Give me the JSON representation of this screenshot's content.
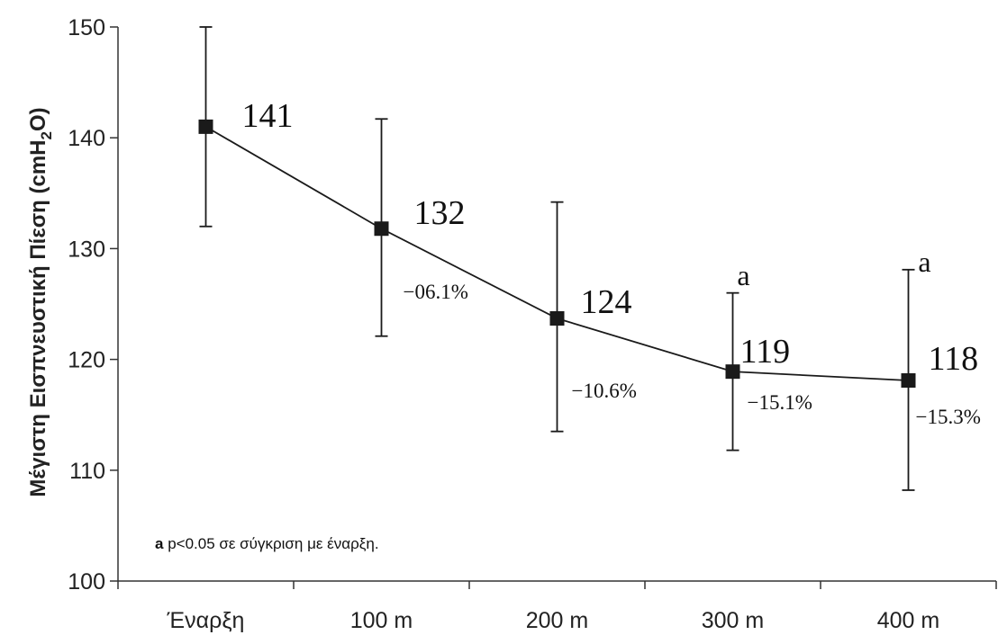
{
  "chart_data": {
    "type": "line",
    "title": "",
    "xlabel": "",
    "ylabel": "Μέγιστη Εισπνευστική Πίεση (cmH2O)",
    "ylabel_main": "Μέγιστη Εισπνευστική Πίεση (cmH",
    "ylabel_sub": "2",
    "ylabel_end": "O)",
    "ylim": [
      100,
      150
    ],
    "yticks": [
      "100",
      "110",
      "120",
      "130",
      "140",
      "150"
    ],
    "categories": [
      "Έναρξη",
      "100 m",
      "200 m",
      "300 m",
      "400 m"
    ],
    "series": [
      {
        "values": [
          141,
          131.8,
          123.7,
          118.9,
          118.1
        ],
        "error_upper": [
          150,
          141.7,
          134.2,
          126.0,
          128.1
        ],
        "error_lower": [
          132,
          122.1,
          113.5,
          111.8,
          108.2
        ],
        "value_labels": [
          "141",
          "132",
          "124",
          "119",
          "118"
        ],
        "pct_labels": [
          "",
          "−06.1%",
          "−10.6%",
          "−15.1%",
          "−15.3%"
        ],
        "significance": [
          "",
          "",
          "",
          "a",
          "a"
        ]
      }
    ],
    "grid": false,
    "legend": "none",
    "footnote_marker": "a",
    "footnote_text": " p<0.05 σε σύγκριση με έναρξη.",
    "colors": {
      "line": "#1a1a1a",
      "marker": "#1a1a1a",
      "axis": "#333333"
    }
  }
}
